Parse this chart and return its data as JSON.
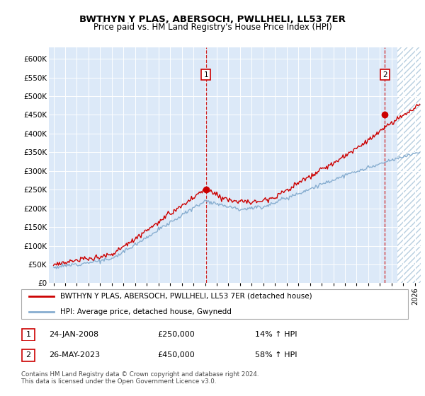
{
  "title": "BWTHYN Y PLAS, ABERSOCH, PWLLHELI, LL53 7ER",
  "subtitle": "Price paid vs. HM Land Registry's House Price Index (HPI)",
  "legend_line1": "BWTHYN Y PLAS, ABERSOCH, PWLLHELI, LL53 7ER (detached house)",
  "legend_line2": "HPI: Average price, detached house, Gwynedd",
  "sale1_date": "24-JAN-2008",
  "sale1_price": "£250,000",
  "sale1_hpi": "14% ↑ HPI",
  "sale2_date": "26-MAY-2023",
  "sale2_price": "£450,000",
  "sale2_hpi": "58% ↑ HPI",
  "footer": "Contains HM Land Registry data © Crown copyright and database right 2024.\nThis data is licensed under the Open Government Licence v3.0.",
  "ylim": [
    0,
    630000
  ],
  "yticks": [
    0,
    50000,
    100000,
    150000,
    200000,
    250000,
    300000,
    350000,
    400000,
    450000,
    500000,
    550000,
    600000
  ],
  "plot_bg_color": "#dce9f8",
  "sale1_x_year": 2008.07,
  "sale2_x_year": 2023.42,
  "sale1_y": 250000,
  "sale2_y": 450000,
  "red_line_color": "#cc0000",
  "blue_line_color": "#88aed0",
  "hatch_start": 2024.5,
  "xmin": 1994.6,
  "xmax": 2026.5
}
